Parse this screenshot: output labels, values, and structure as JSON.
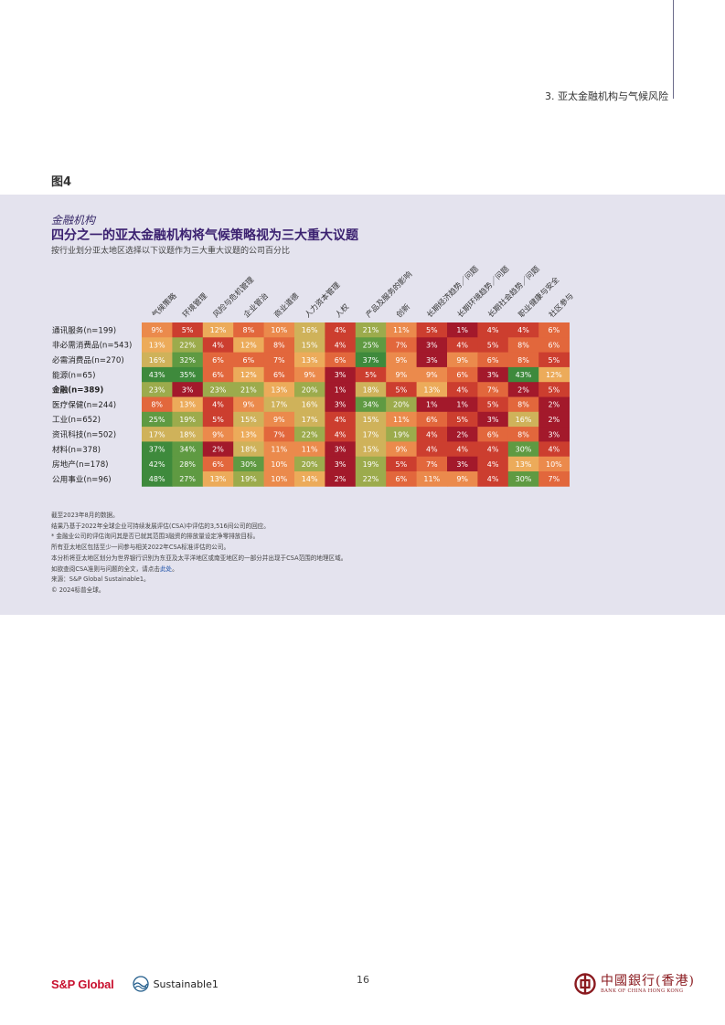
{
  "header": {
    "section_title": "3. 亚太金融机构与气候风险"
  },
  "figure": {
    "label": "图4",
    "subject": "金融机构",
    "title": "四分之一的亚太金融机构将气候策略视为三大重大议题",
    "subtitle": "按行业划分亚太地区选择以下议题作为三大重大议题的公司百分比"
  },
  "chart_data": {
    "type": "heatmap",
    "columns": [
      "气候策略",
      "环境管理",
      "风险与危机管理",
      "企业管治",
      "商业道德",
      "人力资本管理",
      "人权",
      "产品及服务的影响",
      "创新",
      "长期经济趋势／问题",
      "长期环境趋势／问题",
      "长期社会趋势／问题",
      "职业健康与安全",
      "社区参与"
    ],
    "rows": [
      "通讯服务(n=199)",
      "非必需消费品(n=543)",
      "必需消费品(n=270)",
      "能源(n=65)",
      "金融(n=389)",
      "医疗保健(n=244)",
      "工业(n=652)",
      "资讯科技(n=502)",
      "材料(n=378)",
      "房地产(n=178)",
      "公用事业(n=96)"
    ],
    "bold_rows": [
      4
    ],
    "values": [
      [
        9,
        5,
        12,
        8,
        10,
        16,
        4,
        21,
        11,
        5,
        1,
        4,
        4,
        6
      ],
      [
        13,
        22,
        4,
        12,
        8,
        15,
        4,
        25,
        7,
        3,
        4,
        5,
        8,
        6
      ],
      [
        16,
        32,
        6,
        6,
        7,
        13,
        6,
        37,
        9,
        3,
        9,
        6,
        8,
        5
      ],
      [
        43,
        35,
        6,
        12,
        6,
        9,
        3,
        5,
        9,
        9,
        6,
        3,
        43,
        12
      ],
      [
        23,
        3,
        23,
        21,
        13,
        20,
        1,
        18,
        5,
        13,
        4,
        7,
        2,
        5
      ],
      [
        8,
        13,
        4,
        9,
        17,
        16,
        3,
        34,
        20,
        1,
        1,
        5,
        8,
        2
      ],
      [
        25,
        19,
        5,
        15,
        9,
        17,
        4,
        15,
        11,
        6,
        5,
        3,
        16,
        2
      ],
      [
        17,
        18,
        9,
        13,
        7,
        22,
        4,
        17,
        19,
        4,
        2,
        6,
        8,
        3
      ],
      [
        37,
        34,
        2,
        18,
        11,
        11,
        3,
        15,
        9,
        4,
        4,
        4,
        30,
        4
      ],
      [
        42,
        28,
        6,
        30,
        10,
        20,
        3,
        19,
        5,
        7,
        3,
        4,
        13,
        10
      ],
      [
        48,
        27,
        13,
        19,
        10,
        14,
        2,
        22,
        6,
        11,
        9,
        4,
        30,
        7
      ]
    ],
    "value_suffix": "%",
    "color_scale": [
      "#a3192b",
      "#cc3e2f",
      "#e2673c",
      "#eb8a4c",
      "#ecab5a",
      "#cfb25a",
      "#9cab4c",
      "#5f9a42",
      "#3e8a3c"
    ]
  },
  "notes": {
    "lines": [
      "截至2023年8月的数据。",
      "结果乃基于2022年全球企业可持续发展评估(CSA)中评估的3,516间公司的回应。",
      "* 金融业公司的评估询问其是否已就其范围3融资的排放量设定净零排放目标。",
      "所有亚太地区包括至少一间参与相关2022年CSA标准评估的公司。",
      "本分析将亚太地区划分为世界银行识别为东亚及太平洋地区或南亚地区的一部分并出现于CSA范围的地理区域。"
    ],
    "link_line_prefix": "如欲查阅CSA准则与问题的全文，请点击",
    "link_text": "此处",
    "link_line_suffix": "。",
    "source": "来源：S&P Global Sustainable1。",
    "copyright": "© 2024标普全球。"
  },
  "footer": {
    "sp_logo": "S&P Global",
    "sustainable1": "Sustainable1",
    "page_number": "16",
    "boc_cn": "中國銀行(香港)",
    "boc_en": "BANK OF CHINA HONG KONG"
  },
  "colors": {
    "accent_purple": "#3b2170",
    "sp_red": "#c8102e",
    "boc_red": "#8a1a1f",
    "panel_bg": "#e4e3ee"
  }
}
